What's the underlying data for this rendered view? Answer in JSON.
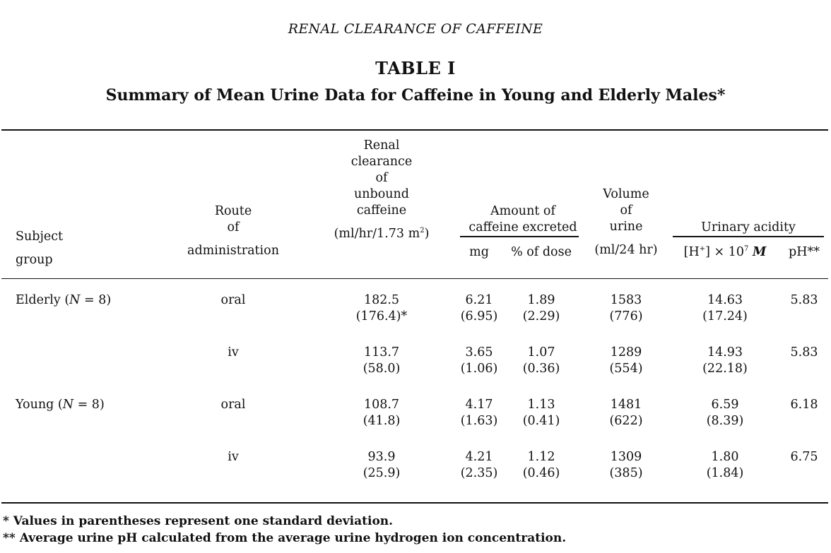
{
  "running_head": "RENAL CLEARANCE OF CAFFEINE",
  "table_label": "TABLE I",
  "table_caption": "Summary of Mean Urine Data for Caffeine in Young and Elderly Males*",
  "headers": {
    "subject": [
      "Subject",
      "group"
    ],
    "route": [
      "Route",
      "of",
      "administration"
    ],
    "renal": [
      "Renal",
      "clearance",
      "of",
      "unbound",
      "caffeine"
    ],
    "renal_unit_pre": "(ml/hr/1.73 m",
    "renal_unit_sup": "2",
    "renal_unit_post": ")",
    "amount": [
      "Amount of",
      "caffeine excreted"
    ],
    "mg": "mg",
    "pct": "% of dose",
    "volume": [
      "Volume",
      "of",
      "urine",
      "(ml/24 hr)"
    ],
    "acidity": "Urinary acidity",
    "h_pre": "[H",
    "h_sup": "+",
    "h_mid": "] × 10",
    "h_sup2": "7",
    "h_unit": "M",
    "ph": "pH**"
  },
  "groups": [
    {
      "label": "Elderly (",
      "n_symbol": "N",
      "n_value": " = 8)"
    },
    {
      "label": "Young (",
      "n_symbol": "N",
      "n_value": " = 8)"
    }
  ],
  "rows": [
    {
      "route": "oral",
      "renal": "182.5",
      "renal_sd": "(176.4)*",
      "mg": "6.21",
      "mg_sd": "(6.95)",
      "pct": "1.89",
      "pct_sd": "(2.29)",
      "vol": "1583",
      "vol_sd": "(776)",
      "h": "14.63",
      "h_sd": "(17.24)",
      "ph": "5.83"
    },
    {
      "route": "iv",
      "renal": "113.7",
      "renal_sd": "(58.0)",
      "mg": "3.65",
      "mg_sd": "(1.06)",
      "pct": "1.07",
      "pct_sd": "(0.36)",
      "vol": "1289",
      "vol_sd": "(554)",
      "h": "14.93",
      "h_sd": "(22.18)",
      "ph": "5.83"
    },
    {
      "route": "oral",
      "renal": "108.7",
      "renal_sd": "(41.8)",
      "mg": "4.17",
      "mg_sd": "(1.63)",
      "pct": "1.13",
      "pct_sd": "(0.41)",
      "vol": "1481",
      "vol_sd": "(622)",
      "h": "6.59",
      "h_sd": "(8.39)",
      "ph": "6.18"
    },
    {
      "route": "iv",
      "renal": "93.9",
      "renal_sd": "(25.9)",
      "mg": "4.21",
      "mg_sd": "(2.35)",
      "pct": "1.12",
      "pct_sd": "(0.46)",
      "vol": "1309",
      "vol_sd": "(385)",
      "h": "1.80",
      "h_sd": "(1.84)",
      "ph": "6.75"
    }
  ],
  "footnotes": [
    "* Values in parentheses represent one standard deviation.",
    "** Average urine pH calculated from the average urine hydrogen ion concentration."
  ]
}
